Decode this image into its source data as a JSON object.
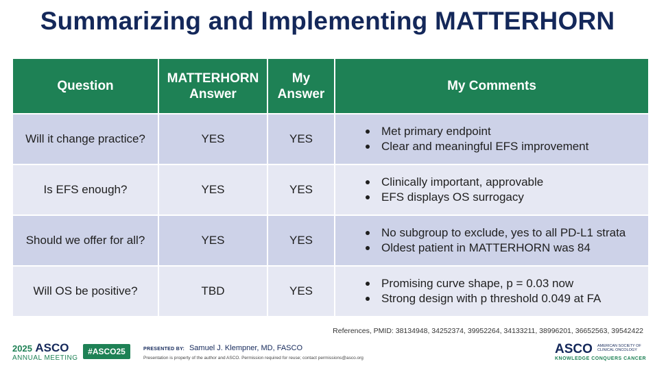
{
  "slide": {
    "title": "Summarizing and Implementing MATTERHORN"
  },
  "table": {
    "headers": {
      "question": "Question",
      "matterhorn_answer_line1": "MATTERHORN",
      "matterhorn_answer_line2": "Answer",
      "my_answer_line1": "My",
      "my_answer_line2": "Answer",
      "my_comments": "My Comments"
    },
    "rows": [
      {
        "question": "Will it change practice?",
        "matterhorn": "YES",
        "mine": "YES",
        "comments": [
          "Met primary endpoint",
          "Clear and meaningful EFS improvement"
        ]
      },
      {
        "question": "Is EFS enough?",
        "matterhorn": "YES",
        "mine": "YES",
        "comments": [
          "Clinically important, approvable",
          "EFS displays OS surrogacy"
        ]
      },
      {
        "question": "Should we offer for all?",
        "matterhorn": "YES",
        "mine": "YES",
        "comments": [
          "No subgroup to exclude, yes to all PD-L1 strata",
          "Oldest patient in MATTERHORN was 84"
        ]
      },
      {
        "question": "Will OS be positive?",
        "matterhorn": "TBD",
        "mine": "YES",
        "comments": [
          "Promising curve shape, p = 0.03 now",
          "Strong design with p threshold 0.049 at FA"
        ]
      }
    ]
  },
  "references": "References, PMID: 38134948, 34252374, 39952264, 34133211, 38996201, 36652563, 39542422",
  "footer": {
    "meeting_year": "2025",
    "meeting_brand": "ASCO",
    "meeting_label": "ANNUAL MEETING",
    "hashtag": "#ASCO25",
    "presented_by_label": "PRESENTED BY:",
    "presenter": "Samuel J. Klempner, MD, FASCO",
    "disclaimer": "Presentation is property of the author and ASCO. Permission required for reuse; contact permissions@asco.org",
    "asco_logo": "ASCO",
    "asco_society": "AMERICAN SOCIETY OF CLINICAL ONCOLOGY",
    "asco_tagline": "KNOWLEDGE CONQUERS CANCER"
  }
}
